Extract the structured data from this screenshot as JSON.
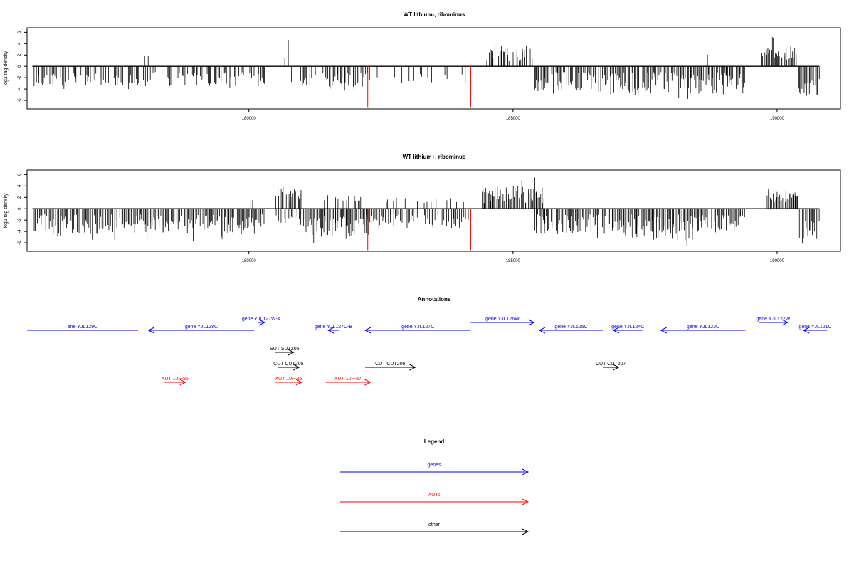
{
  "panels": [
    {
      "title": "WT lithium-, ribominus",
      "ylabel": "log2 tag density",
      "yticks": [
        "-6",
        "-4",
        "-2",
        "0",
        "2",
        "4",
        "6"
      ],
      "xticks": [
        "180000",
        "185000",
        "190000"
      ]
    },
    {
      "title": "WT lithium+, ribominus",
      "ylabel": "log2 tag density",
      "yticks": [
        "-6",
        "-4",
        "-2",
        "0",
        "2",
        "4",
        "6"
      ],
      "xticks": [
        "180000",
        "185000",
        "190000"
      ]
    }
  ],
  "annotations": {
    "title": "Annotations",
    "features": [
      {
        "label": "ene YJL129C",
        "type": "gene",
        "start": 175800,
        "end": 177900,
        "dir": "none",
        "row": 1
      },
      {
        "label": "gene YJL128C",
        "type": "gene",
        "start": 178100,
        "end": 180100,
        "dir": "left",
        "row": 1
      },
      {
        "label": "gene YJL127W-A",
        "type": "gene",
        "start": 180170,
        "end": 180300,
        "dir": "right",
        "row": 0
      },
      {
        "label": "gene YJL127C-B",
        "type": "gene",
        "start": 181500,
        "end": 181700,
        "dir": "left",
        "row": 1
      },
      {
        "label": "gene YJL127C",
        "type": "gene",
        "start": 182200,
        "end": 184200,
        "dir": "left",
        "row": 1
      },
      {
        "label": "gene YJL126W",
        "type": "gene",
        "start": 184200,
        "end": 185400,
        "dir": "right",
        "row": 0
      },
      {
        "label": "gene YJL125C",
        "type": "gene",
        "start": 185500,
        "end": 186700,
        "dir": "left",
        "row": 1
      },
      {
        "label": "gene YJL124C",
        "type": "gene",
        "start": 186900,
        "end": 187450,
        "dir": "left",
        "row": 1
      },
      {
        "label": "gene YJL123C",
        "type": "gene",
        "start": 187800,
        "end": 189400,
        "dir": "left",
        "row": 1
      },
      {
        "label": "gene YJL122W",
        "type": "gene",
        "start": 189650,
        "end": 190200,
        "dir": "right",
        "row": 0
      },
      {
        "label": "gene YJL121C",
        "type": "gene",
        "start": 190500,
        "end": 191200,
        "dir": "left",
        "row": 1
      },
      {
        "label": "SUT SUT205",
        "type": "other",
        "start": 180500,
        "end": 180850,
        "dir": "right",
        "row": 2
      },
      {
        "label": "CUT CUT205",
        "type": "other",
        "start": 180550,
        "end": 180950,
        "dir": "right",
        "row": 3
      },
      {
        "label": "CUT CUT206",
        "type": "other",
        "start": 182200,
        "end": 183150,
        "dir": "right",
        "row": 3
      },
      {
        "label": "CUT CUT207",
        "type": "other",
        "start": 186700,
        "end": 187000,
        "dir": "right",
        "row": 3
      },
      {
        "label": "XUT 10F-85",
        "type": "xut",
        "start": 178400,
        "end": 178800,
        "dir": "right",
        "row": 4
      },
      {
        "label": "XUT 10F-86",
        "type": "xut",
        "start": 180500,
        "end": 181000,
        "dir": "right",
        "row": 4
      },
      {
        "label": "XUT 10F-87",
        "type": "xut",
        "start": 181450,
        "end": 182300,
        "dir": "right",
        "row": 4
      }
    ]
  },
  "legend": {
    "title": "Legend",
    "items": [
      {
        "label": "genes",
        "color": "#0000ff"
      },
      {
        "label": "XUTs",
        "color": "#ff0000"
      },
      {
        "label": "other",
        "color": "#000000"
      }
    ]
  },
  "colors": {
    "gene": "#0000ff",
    "xut": "#ff0000",
    "other": "#000000",
    "marker": "#ff0000",
    "bars": "#000000"
  },
  "chart_data": [
    {
      "type": "bar",
      "title": "WT lithium-, ribominus",
      "ylabel": "log2 tag density",
      "xlabel": "",
      "xlim": [
        175800,
        191200
      ],
      "ylim": [
        -7.5,
        6.8
      ],
      "genomic_range": [
        175900,
        190800
      ],
      "markers": [
        182250,
        184200
      ],
      "segments": [
        {
          "start": 175900,
          "end": 180300,
          "density": 0.55,
          "sign": -1,
          "min": 1,
          "max": 3.5,
          "spike": 4.3
        },
        {
          "start": 178000,
          "end": 178100,
          "density": 0.2,
          "sign": 1,
          "min": 1,
          "max": 2.8,
          "spike": 2.8
        },
        {
          "start": 180600,
          "end": 180800,
          "density": 0.6,
          "sign": 1,
          "min": 1,
          "max": 4.8,
          "spike": 4.8
        },
        {
          "start": 180800,
          "end": 181500,
          "density": 0.35,
          "sign": -1,
          "min": 1,
          "max": 3.5,
          "spike": 5.4
        },
        {
          "start": 181500,
          "end": 182300,
          "density": 0.7,
          "sign": -1,
          "min": 1,
          "max": 4.5,
          "spike": 5.0
        },
        {
          "start": 182300,
          "end": 184200,
          "density": 0.18,
          "sign": -1,
          "min": 1,
          "max": 3.0,
          "spike": 3.5
        },
        {
          "start": 184500,
          "end": 185400,
          "density": 0.7,
          "sign": 1,
          "min": 1,
          "max": 3.8,
          "spike": 4.2
        },
        {
          "start": 185400,
          "end": 186800,
          "density": 0.85,
          "sign": -1,
          "min": 1,
          "max": 4.5,
          "spike": 5.2
        },
        {
          "start": 186800,
          "end": 189400,
          "density": 0.9,
          "sign": -1,
          "min": 1,
          "max": 5.0,
          "spike": 5.8
        },
        {
          "start": 188600,
          "end": 188700,
          "density": 0.3,
          "sign": 1,
          "min": 1,
          "max": 2.4,
          "spike": 2.4
        },
        {
          "start": 189700,
          "end": 190400,
          "density": 0.9,
          "sign": 1,
          "min": 1,
          "max": 3.5,
          "spike": 5.3
        },
        {
          "start": 190400,
          "end": 190800,
          "density": 0.9,
          "sign": -1,
          "min": 2,
          "max": 5.5,
          "spike": 6.2
        }
      ]
    },
    {
      "type": "bar",
      "title": "WT lithium+, ribominus",
      "ylabel": "log2 tag density",
      "xlabel": "",
      "xlim": [
        175800,
        191200
      ],
      "ylim": [
        -7.5,
        6.8
      ],
      "genomic_range": [
        175900,
        190800
      ],
      "markers": [
        182250,
        184200
      ],
      "segments": [
        {
          "start": 175900,
          "end": 180300,
          "density": 0.9,
          "sign": -1,
          "min": 1,
          "max": 4.5,
          "spike": 5.8
        },
        {
          "start": 180000,
          "end": 180100,
          "density": 0.3,
          "sign": 1,
          "min": 1,
          "max": 2.0,
          "spike": 2.0
        },
        {
          "start": 180500,
          "end": 181000,
          "density": 0.8,
          "sign": 1,
          "min": 1,
          "max": 4.0,
          "spike": 5.2
        },
        {
          "start": 180500,
          "end": 181000,
          "density": 0.6,
          "sign": -1,
          "min": 1,
          "max": 3.0,
          "spike": 4.0
        },
        {
          "start": 181000,
          "end": 182300,
          "density": 0.95,
          "sign": -1,
          "min": 1,
          "max": 5.0,
          "spike": 6.3
        },
        {
          "start": 181400,
          "end": 182200,
          "density": 0.4,
          "sign": 1,
          "min": 1,
          "max": 2.5,
          "spike": 3.0
        },
        {
          "start": 182300,
          "end": 184200,
          "density": 0.6,
          "sign": -1,
          "min": 1,
          "max": 3.5,
          "spike": 5.0
        },
        {
          "start": 182300,
          "end": 184200,
          "density": 0.2,
          "sign": 1,
          "min": 1,
          "max": 2.0,
          "spike": 3.5
        },
        {
          "start": 184400,
          "end": 185600,
          "density": 0.95,
          "sign": 1,
          "min": 1,
          "max": 4.0,
          "spike": 6.2
        },
        {
          "start": 185400,
          "end": 186800,
          "density": 0.85,
          "sign": -1,
          "min": 1,
          "max": 4.5,
          "spike": 5.5
        },
        {
          "start": 186000,
          "end": 186100,
          "density": 0.3,
          "sign": 1,
          "min": 1,
          "max": 3.0,
          "spike": 3.0
        },
        {
          "start": 186800,
          "end": 188500,
          "density": 1.0,
          "sign": -1,
          "min": 1,
          "max": 5.5,
          "spike": 6.8
        },
        {
          "start": 188500,
          "end": 189400,
          "density": 0.8,
          "sign": -1,
          "min": 1,
          "max": 4.0,
          "spike": 5.2
        },
        {
          "start": 189800,
          "end": 190400,
          "density": 0.9,
          "sign": 1,
          "min": 1,
          "max": 3.0,
          "spike": 4.0
        },
        {
          "start": 190400,
          "end": 190800,
          "density": 0.9,
          "sign": -1,
          "min": 2,
          "max": 5.5,
          "spike": 6.5
        }
      ]
    }
  ]
}
